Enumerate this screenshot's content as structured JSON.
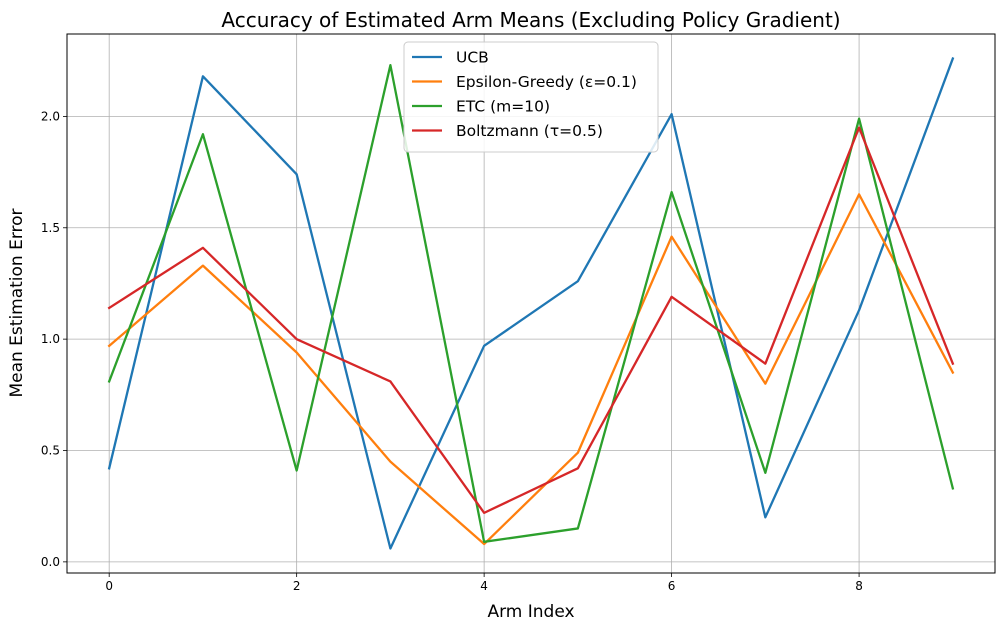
{
  "chart_data": {
    "type": "line",
    "title": "Accuracy of Estimated Arm Means (Excluding Policy Gradient)",
    "xlabel": "Arm Index",
    "ylabel": "Mean Estimation Error",
    "x": [
      0,
      1,
      2,
      3,
      4,
      5,
      6,
      7,
      8,
      9
    ],
    "xlim": [
      -0.45,
      9.45
    ],
    "ylim": [
      -0.05,
      2.37
    ],
    "xticks": [
      0,
      2,
      4,
      6,
      8
    ],
    "xtick_labels": [
      "0",
      "2",
      "4",
      "6",
      "8"
    ],
    "yticks": [
      0.0,
      0.5,
      1.0,
      1.5,
      2.0
    ],
    "ytick_labels": [
      "0.0",
      "0.5",
      "1.0",
      "1.5",
      "2.0"
    ],
    "grid": true,
    "legend_position": "upper center",
    "series": [
      {
        "name": "UCB",
        "color": "#1f77b4",
        "values": [
          0.42,
          2.18,
          1.74,
          0.06,
          0.97,
          1.26,
          2.01,
          0.2,
          1.13,
          2.26
        ]
      },
      {
        "name": "Epsilon-Greedy (ε=0.1)",
        "color": "#ff7f0e",
        "values": [
          0.97,
          1.33,
          0.94,
          0.45,
          0.08,
          0.49,
          1.46,
          0.8,
          1.65,
          0.85
        ]
      },
      {
        "name": "ETC (m=10)",
        "color": "#2ca02c",
        "values": [
          0.81,
          1.92,
          0.41,
          2.23,
          0.09,
          0.15,
          1.66,
          0.4,
          1.99,
          0.33
        ]
      },
      {
        "name": "Boltzmann (τ=0.5)",
        "color": "#d62728",
        "values": [
          1.14,
          1.41,
          1.0,
          0.81,
          0.22,
          0.42,
          1.19,
          0.89,
          1.95,
          0.89
        ]
      }
    ]
  }
}
